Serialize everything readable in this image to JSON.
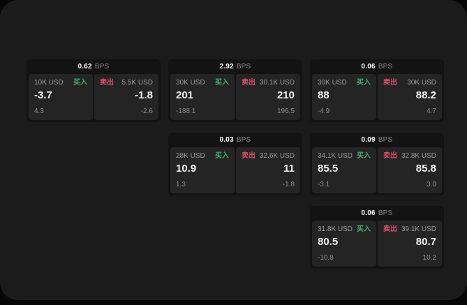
{
  "colors": {
    "buy_accent": "#3fae73",
    "sell_accent": "#dc4f6d",
    "window_bg": "#1b1b1b",
    "card_bg": "#131313",
    "panel_bg": "#242424"
  },
  "cards": [
    {
      "grid": {
        "col": 1,
        "row": 1
      },
      "bps_value": "0.62",
      "bps_unit": "BPS",
      "buy": {
        "amount": "10K USD",
        "side_label": "买入",
        "value": "-3.7",
        "sub_value": "4.3"
      },
      "sell": {
        "side_label": "卖出",
        "amount": "5.5K USD",
        "value": "-1.8",
        "sub_value": "-2.6"
      }
    },
    {
      "grid": {
        "col": 2,
        "row": 1
      },
      "bps_value": "2.92",
      "bps_unit": "BPS",
      "buy": {
        "amount": "30K USD",
        "side_label": "买入",
        "value": "201",
        "sub_value": "-188.1"
      },
      "sell": {
        "side_label": "卖出",
        "amount": "30.1K USD",
        "value": "210",
        "sub_value": "196.5"
      }
    },
    {
      "grid": {
        "col": 3,
        "row": 1
      },
      "bps_value": "0.06",
      "bps_unit": "BPS",
      "buy": {
        "amount": "30K USD",
        "side_label": "买入",
        "value": "88",
        "sub_value": "-4.9"
      },
      "sell": {
        "side_label": "卖出",
        "amount": "30K USD",
        "value": "88.2",
        "sub_value": "4.7"
      }
    },
    {
      "grid": {
        "col": 2,
        "row": 2
      },
      "bps_value": "0.03",
      "bps_unit": "BPS",
      "buy": {
        "amount": "28K USD",
        "side_label": "买入",
        "value": "10.9",
        "sub_value": "1.3"
      },
      "sell": {
        "side_label": "卖出",
        "amount": "32.6K USD",
        "value": "11",
        "sub_value": "-1.8"
      }
    },
    {
      "grid": {
        "col": 3,
        "row": 2
      },
      "bps_value": "0.09",
      "bps_unit": "BPS",
      "buy": {
        "amount": "34.1K USD",
        "side_label": "买入",
        "value": "85.5",
        "sub_value": "-3.1"
      },
      "sell": {
        "side_label": "卖出",
        "amount": "32.8K USD",
        "value": "85.8",
        "sub_value": "3.0"
      }
    },
    {
      "grid": {
        "col": 3,
        "row": 3
      },
      "bps_value": "0.06",
      "bps_unit": "BPS",
      "buy": {
        "amount": "31.8K USD",
        "side_label": "买入",
        "value": "80.5",
        "sub_value": "-10.8"
      },
      "sell": {
        "side_label": "卖出",
        "amount": "39.1K USD",
        "value": "80.7",
        "sub_value": "10.2"
      }
    }
  ]
}
